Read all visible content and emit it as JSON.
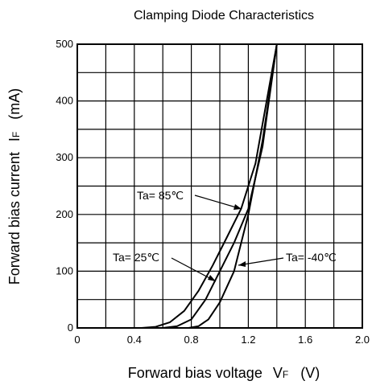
{
  "chart_data": {
    "type": "line",
    "title": "Clamping Diode Characteristics",
    "xlabel": "Forward bias voltage",
    "xlabel_symbol": "V",
    "xlabel_symbol_sub": "F",
    "xlabel_unit": "(V)",
    "ylabel": "Forward bias current",
    "ylabel_symbol": "I",
    "ylabel_symbol_sub": "F",
    "ylabel_unit": "(mA)",
    "xlim": [
      0,
      2.0
    ],
    "ylim": [
      0,
      500
    ],
    "x_ticks": [
      0,
      0.4,
      0.8,
      1.2,
      1.6,
      2.0
    ],
    "x_tick_labels": [
      "0",
      "0.4",
      "0.8",
      "1.2",
      "1.6",
      "2.0"
    ],
    "y_ticks": [
      0,
      100,
      200,
      300,
      400,
      500
    ],
    "y_tick_labels": [
      "0",
      "100",
      "200",
      "300",
      "400",
      "500"
    ],
    "grid": true,
    "grid_step_x": 0.2,
    "grid_step_y": 50,
    "series": [
      {
        "name": "Ta= 85℃",
        "points": [
          [
            0,
            0
          ],
          [
            0.45,
            0
          ],
          [
            0.55,
            2
          ],
          [
            0.65,
            10
          ],
          [
            0.75,
            30
          ],
          [
            0.85,
            65
          ],
          [
            0.95,
            110
          ],
          [
            1.05,
            160
          ],
          [
            1.15,
            210
          ],
          [
            1.25,
            290
          ],
          [
            1.4,
            500
          ]
        ]
      },
      {
        "name": "Ta= 25℃",
        "points": [
          [
            0,
            0
          ],
          [
            0.6,
            0
          ],
          [
            0.7,
            3
          ],
          [
            0.8,
            15
          ],
          [
            0.9,
            50
          ],
          [
            1.0,
            100
          ],
          [
            1.1,
            150
          ],
          [
            1.2,
            210
          ],
          [
            1.3,
            320
          ],
          [
            1.4,
            500
          ]
        ]
      },
      {
        "name": "Ta= -40℃",
        "points": [
          [
            0,
            0
          ],
          [
            0.78,
            0
          ],
          [
            0.85,
            3
          ],
          [
            0.92,
            15
          ],
          [
            1.0,
            45
          ],
          [
            1.1,
            100
          ],
          [
            1.2,
            200
          ],
          [
            1.3,
            330
          ],
          [
            1.4,
            500
          ]
        ]
      }
    ]
  }
}
